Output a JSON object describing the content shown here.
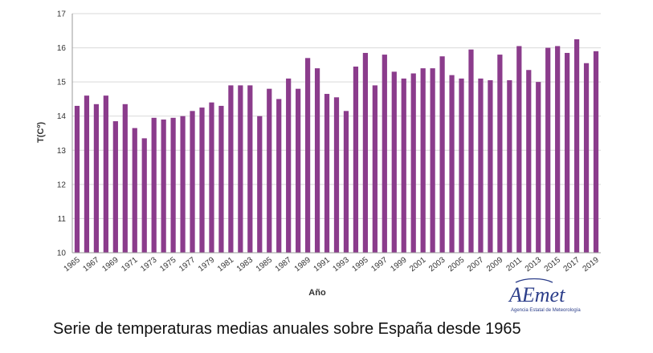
{
  "chart_data": {
    "type": "bar",
    "title": "",
    "xlabel": "Año",
    "ylabel": "T(Cº)",
    "ylim": [
      10,
      17
    ],
    "yticks": [
      10,
      11,
      12,
      13,
      14,
      15,
      16,
      17
    ],
    "grid": true,
    "bar_color": "#8b3c8c",
    "categories": [
      "1965",
      "1966",
      "1967",
      "1968",
      "1969",
      "1970",
      "1971",
      "1972",
      "1973",
      "1974",
      "1975",
      "1976",
      "1977",
      "1978",
      "1979",
      "1980",
      "1981",
      "1982",
      "1983",
      "1984",
      "1985",
      "1986",
      "1987",
      "1988",
      "1989",
      "1990",
      "1991",
      "1992",
      "1993",
      "1994",
      "1995",
      "1996",
      "1997",
      "1998",
      "1999",
      "2000",
      "2001",
      "2002",
      "2003",
      "2004",
      "2005",
      "2006",
      "2007",
      "2008",
      "2009",
      "2010",
      "2011",
      "2012",
      "2013",
      "2014",
      "2015",
      "2016",
      "2017",
      "2018",
      "2019"
    ],
    "xtick_labels": [
      "1965",
      "1967",
      "1969",
      "1971",
      "1973",
      "1975",
      "1977",
      "1979",
      "1981",
      "1983",
      "1985",
      "1987",
      "1989",
      "1991",
      "1993",
      "1995",
      "1997",
      "1999",
      "2001",
      "2003",
      "2005",
      "2007",
      "2009",
      "2011",
      "2013",
      "2015",
      "2017",
      "2019"
    ],
    "values": [
      14.3,
      14.6,
      14.35,
      14.6,
      13.85,
      14.35,
      13.65,
      13.35,
      13.95,
      13.9,
      13.95,
      14.0,
      14.15,
      14.25,
      14.4,
      14.3,
      14.9,
      14.9,
      14.9,
      14.0,
      14.8,
      14.5,
      15.1,
      14.8,
      15.7,
      15.4,
      14.65,
      14.55,
      14.15,
      15.45,
      15.85,
      14.9,
      15.8,
      15.3,
      15.1,
      15.25,
      15.4,
      15.4,
      15.75,
      15.2,
      15.1,
      15.95,
      15.1,
      15.05,
      15.8,
      15.05,
      16.05,
      15.35,
      15.0,
      16.0,
      16.05,
      15.85,
      16.25,
      15.55,
      15.9
    ]
  },
  "caption": "Serie de temperaturas medias anuales sobre España desde 1965",
  "logo": {
    "name": "AEmet",
    "subtitle": "Agencia Estatal de Meteorología",
    "color": "#2c3e8a"
  }
}
